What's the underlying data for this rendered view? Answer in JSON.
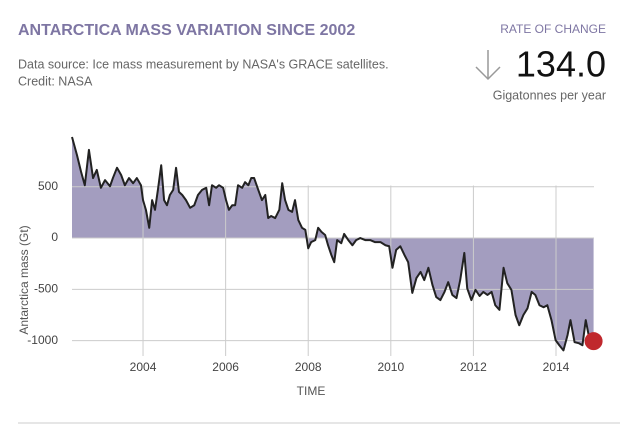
{
  "chart_data": {
    "type": "area",
    "title": "ANTARCTICA MASS VARIATION SINCE 2002",
    "subtitle": [
      "Data source: Ice mass measurement by NASA's GRACE satellites.",
      "Credit: NASA"
    ],
    "rate": {
      "label": "RATE OF CHANGE",
      "value": {
        "value": 134.0,
        "label": "134.0"
      },
      "unit": "Gigatonnes per year"
    },
    "x_label": "TIME",
    "y_label": "Antarctica mass (Gt)",
    "color": "#a39dbf",
    "line_color": "#222222",
    "marker_color": "#c0282d",
    "grid": true,
    "xlim": [
      2002.28,
      2014.92
    ],
    "ylim": [
      -1150,
      1000
    ],
    "xticks": [
      2004,
      2006,
      2008,
      2010,
      2012,
      2014
    ],
    "yticks": [
      500,
      0,
      -500,
      -1000
    ],
    "x": [
      2002.28,
      2002.4,
      2002.5,
      2002.59,
      2002.69,
      2002.79,
      2002.88,
      2002.98,
      2003.08,
      2003.2,
      2003.27,
      2003.37,
      2003.47,
      2003.56,
      2003.66,
      2003.76,
      2003.85,
      2003.95,
      2004.0,
      2004.07,
      2004.15,
      2004.22,
      2004.29,
      2004.36,
      2004.44,
      2004.51,
      2004.58,
      2004.65,
      2004.73,
      2004.8,
      2004.87,
      2004.95,
      2005.04,
      2005.14,
      2005.24,
      2005.33,
      2005.43,
      2005.53,
      2005.6,
      2005.67,
      2005.77,
      2005.84,
      2005.94,
      2006.01,
      2006.08,
      2006.16,
      2006.23,
      2006.3,
      2006.4,
      2006.47,
      2006.55,
      2006.62,
      2006.69,
      2006.79,
      2006.88,
      2006.96,
      2007.03,
      2007.1,
      2007.2,
      2007.3,
      2007.37,
      2007.44,
      2007.52,
      2007.61,
      2007.68,
      2007.76,
      2007.85,
      2007.93,
      2008.0,
      2008.07,
      2008.17,
      2008.24,
      2008.32,
      2008.41,
      2008.48,
      2008.56,
      2008.63,
      2008.7,
      2008.8,
      2008.87,
      2008.97,
      2009.07,
      2009.16,
      2009.26,
      2009.38,
      2009.5,
      2009.62,
      2009.75,
      2009.87,
      2009.96,
      2010.04,
      2010.13,
      2010.23,
      2010.33,
      2010.42,
      2010.52,
      2010.62,
      2010.72,
      2010.81,
      2010.91,
      2011.01,
      2011.1,
      2011.2,
      2011.3,
      2011.39,
      2011.49,
      2011.59,
      2011.68,
      2011.78,
      2011.85,
      2011.95,
      2012.05,
      2012.15,
      2012.24,
      2012.34,
      2012.44,
      2012.53,
      2012.63,
      2012.73,
      2012.82,
      2012.92,
      2013.02,
      2013.11,
      2013.21,
      2013.31,
      2013.41,
      2013.5,
      2013.6,
      2013.7,
      2013.79,
      2013.89,
      2013.99,
      2014.08,
      2014.18,
      2014.28,
      2014.35,
      2014.45,
      2014.55,
      2014.64,
      2014.72,
      2014.79,
      2014.91
    ],
    "values": [
      985,
      810,
      645,
      515,
      860,
      585,
      665,
      490,
      565,
      505,
      585,
      685,
      615,
      515,
      585,
      535,
      585,
      515,
      370,
      275,
      100,
      370,
      275,
      470,
      710,
      370,
      320,
      420,
      470,
      685,
      450,
      420,
      370,
      295,
      320,
      420,
      470,
      490,
      320,
      515,
      490,
      515,
      490,
      370,
      275,
      320,
      320,
      515,
      490,
      545,
      515,
      585,
      585,
      470,
      370,
      420,
      195,
      215,
      195,
      275,
      535,
      370,
      275,
      255,
      370,
      175,
      100,
      80,
      -100,
      -40,
      -20,
      100,
      60,
      30,
      -70,
      -165,
      -235,
      -20,
      -50,
      40,
      -20,
      -70,
      -20,
      0,
      -20,
      -20,
      -40,
      -40,
      -70,
      -80,
      -290,
      -115,
      -80,
      -165,
      -235,
      -535,
      -390,
      -330,
      -410,
      -290,
      -460,
      -575,
      -605,
      -525,
      -430,
      -555,
      -585,
      -410,
      -145,
      -490,
      -605,
      -505,
      -565,
      -525,
      -555,
      -525,
      -655,
      -700,
      -290,
      -440,
      -505,
      -750,
      -850,
      -750,
      -685,
      -525,
      -555,
      -655,
      -675,
      -655,
      -800,
      -995,
      -1045,
      -1095,
      -945,
      -800,
      -1015,
      -1025,
      -1045,
      -800,
      -945,
      -1005
    ]
  }
}
